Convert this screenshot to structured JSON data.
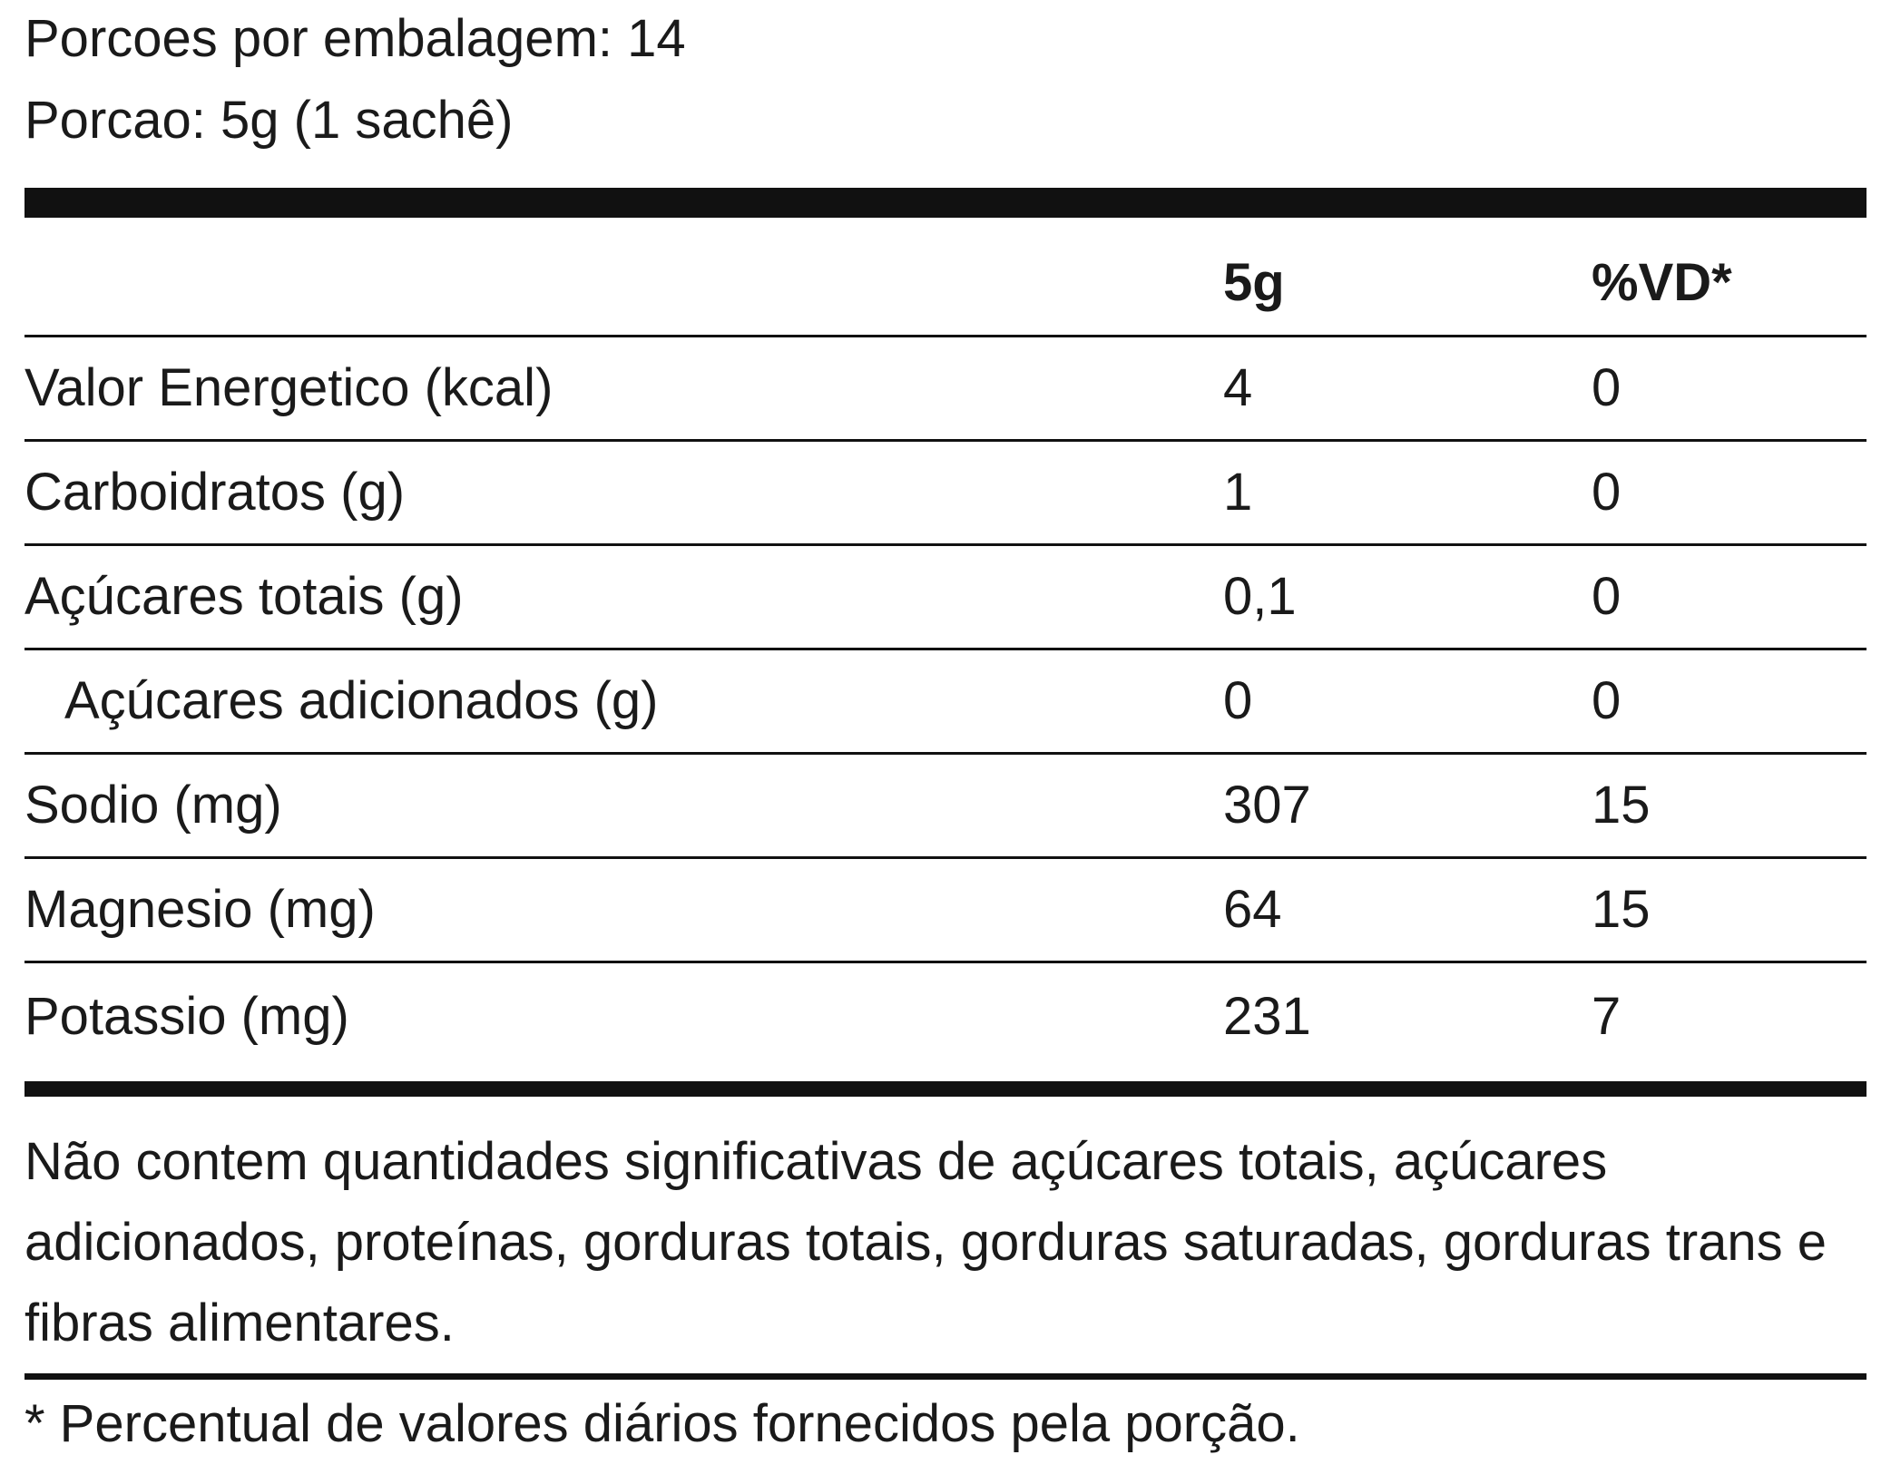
{
  "header": {
    "servings_per_package": "Porcoes por embalagem: 14",
    "portion": "Porcao: 5g (1 sachê)"
  },
  "table": {
    "columns": {
      "name": "",
      "amount": "5g",
      "daily_value": "%VD*"
    },
    "rows": [
      {
        "name": "Valor Energetico (kcal)",
        "amount": "4",
        "daily_value": "0",
        "indent": false
      },
      {
        "name": "Carboidratos (g)",
        "amount": "1",
        "daily_value": "0",
        "indent": false
      },
      {
        "name": "Açúcares totais (g)",
        "amount": "0,1",
        "daily_value": "0",
        "indent": false
      },
      {
        "name": "Açúcares adicionados (g)",
        "amount": "0",
        "daily_value": "0",
        "indent": true
      },
      {
        "name": "Sodio (mg)",
        "amount": "307",
        "daily_value": "15",
        "indent": false
      },
      {
        "name": "Magnesio (mg)",
        "amount": "64",
        "daily_value": "15",
        "indent": false
      },
      {
        "name": "Potassio (mg)",
        "amount": "231",
        "daily_value": "7",
        "indent": false
      }
    ]
  },
  "footnote": "Não contem quantidades significativas de açúcares totais, açúcares adicionados, proteínas, gorduras totais, gorduras saturadas, gorduras trans e fibras alimentares.",
  "disclaimer": "* Percentual de valores diários fornecidos pela porção."
}
